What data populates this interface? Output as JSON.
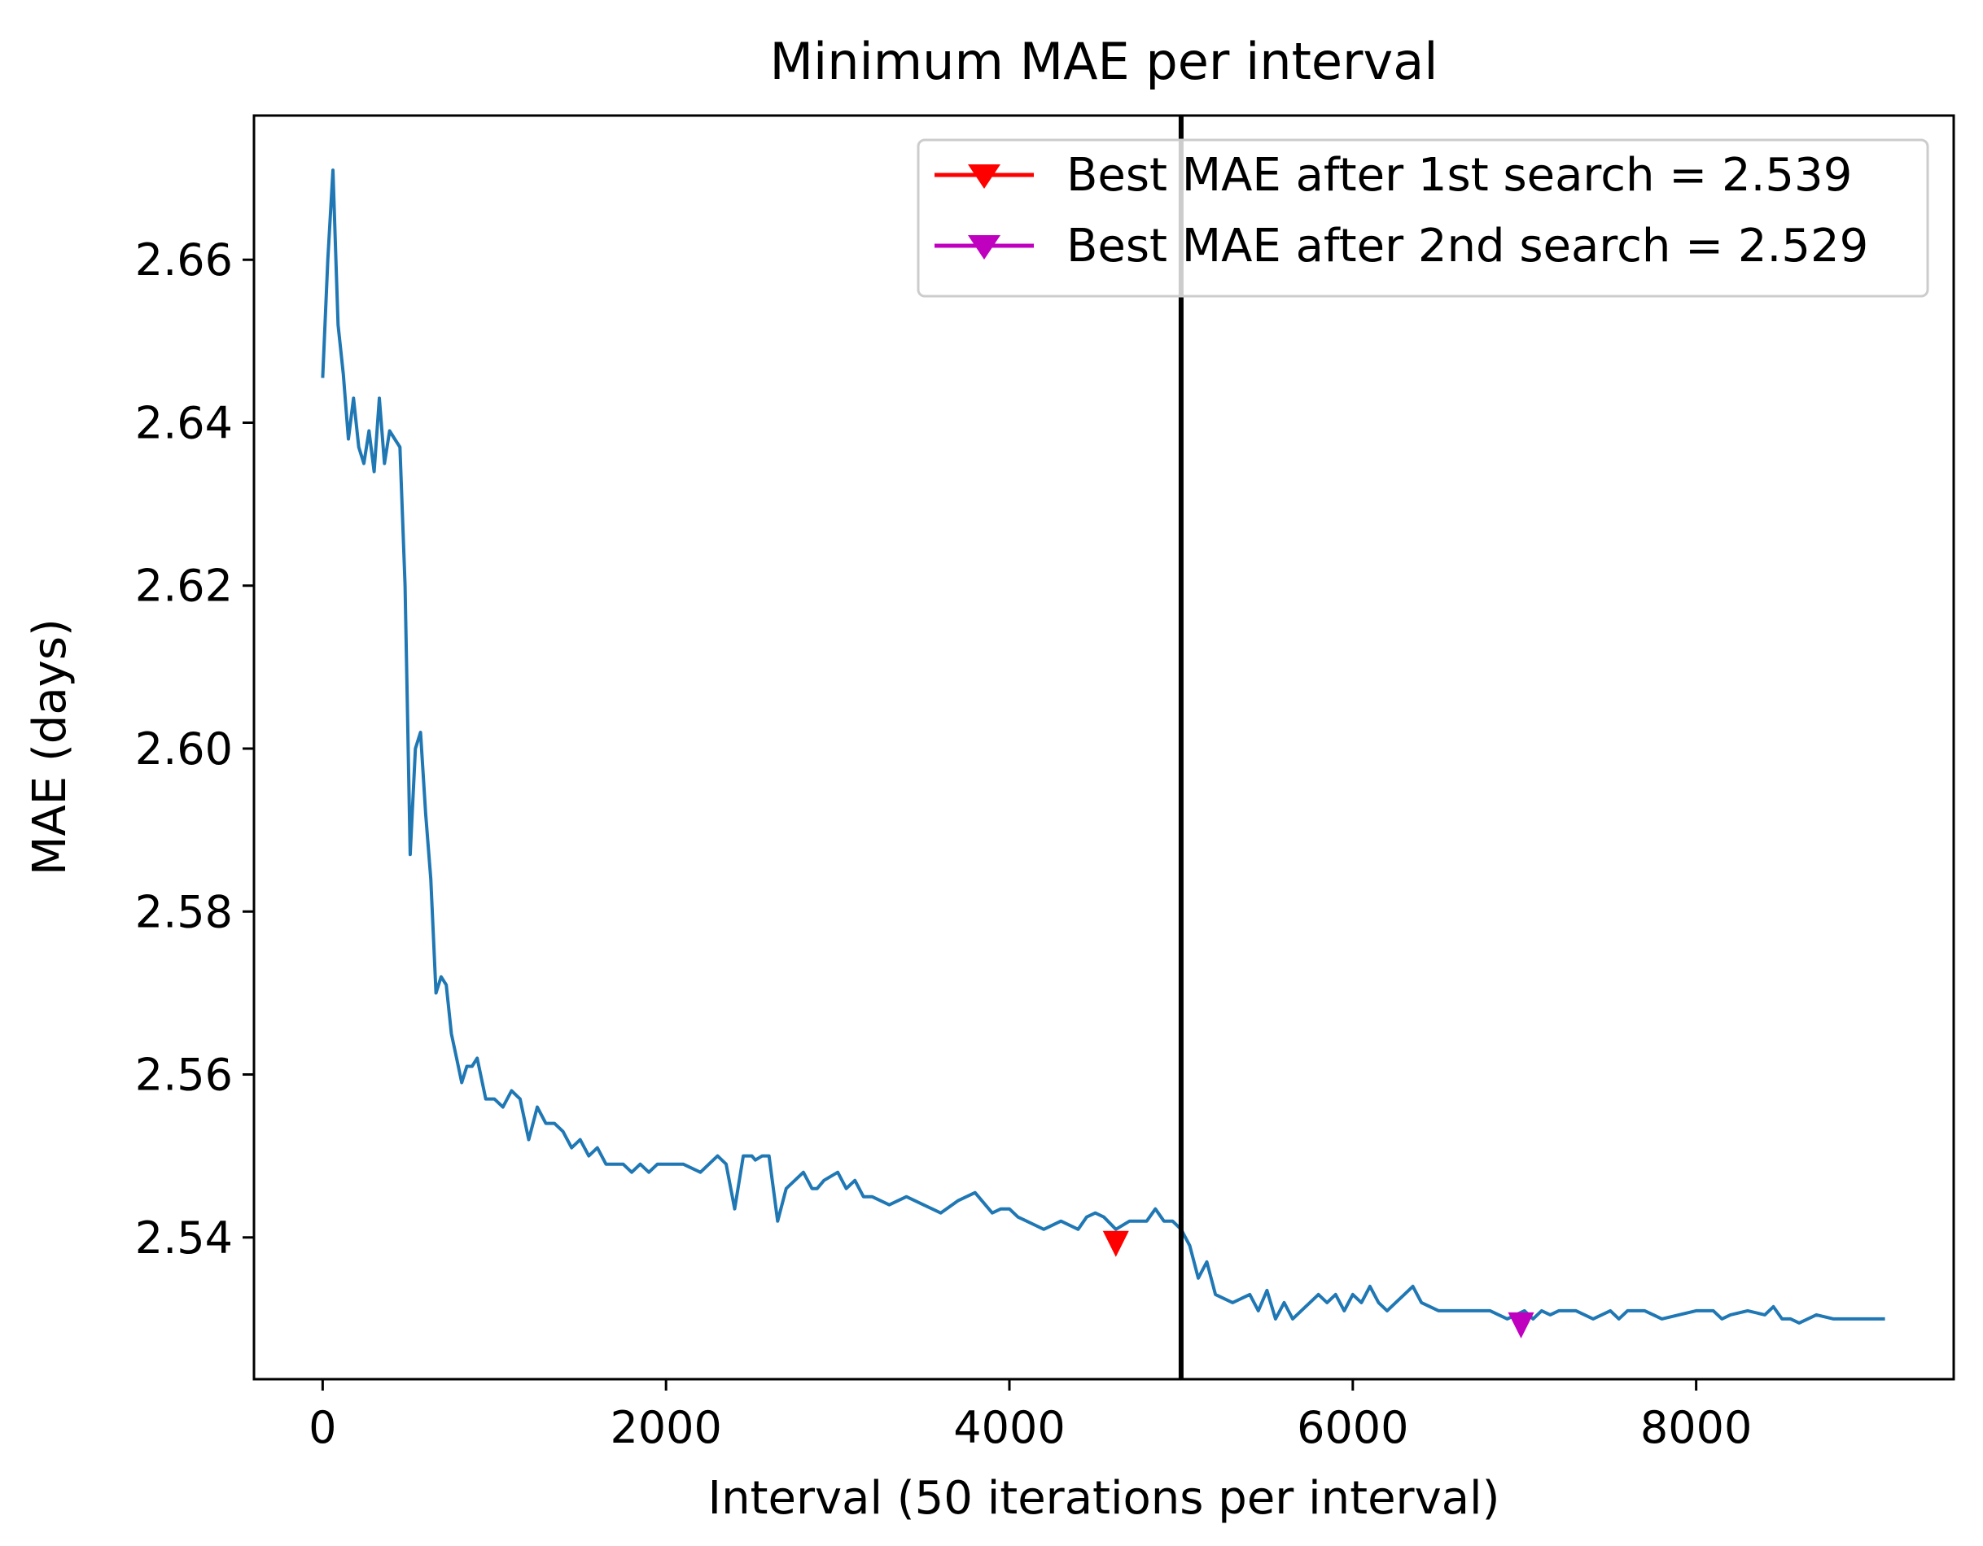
{
  "chart_data": {
    "type": "line",
    "title": "Minimum MAE per interval",
    "xlabel": "Interval (50 iterations per interval)",
    "ylabel": "MAE (days)",
    "xlim": [
      -400,
      9500
    ],
    "ylim": [
      2.5226,
      2.6777
    ],
    "x_ticks": [
      0,
      2000,
      4000,
      6000,
      8000
    ],
    "x_tick_labels": [
      "0",
      "2000",
      "4000",
      "6000",
      "8000"
    ],
    "y_ticks": [
      2.54,
      2.56,
      2.58,
      2.6,
      2.62,
      2.64,
      2.66
    ],
    "y_tick_labels": [
      "2.54",
      "2.56",
      "2.58",
      "2.60",
      "2.62",
      "2.64",
      "2.66"
    ],
    "legend_position": "top-right",
    "vertical_line": {
      "x": 5000,
      "color": "#000000"
    },
    "series": [
      {
        "name": "Minimum MAE",
        "color": "#1f77b4",
        "x": [
          0,
          30,
          60,
          90,
          120,
          150,
          180,
          210,
          240,
          270,
          300,
          330,
          360,
          390,
          420,
          450,
          480,
          510,
          540,
          570,
          600,
          630,
          660,
          690,
          720,
          750,
          780,
          810,
          840,
          870,
          900,
          950,
          1000,
          1050,
          1100,
          1150,
          1200,
          1250,
          1300,
          1350,
          1400,
          1450,
          1500,
          1550,
          1600,
          1650,
          1700,
          1750,
          1800,
          1850,
          1900,
          1950,
          2000,
          2100,
          2200,
          2300,
          2350,
          2400,
          2450,
          2500,
          2520,
          2560,
          2600,
          2650,
          2700,
          2750,
          2800,
          2850,
          2880,
          2920,
          3000,
          3050,
          3100,
          3150,
          3200,
          3300,
          3400,
          3500,
          3550,
          3600,
          3700,
          3800,
          3900,
          3950,
          4000,
          4050,
          4100,
          4200,
          4300,
          4400,
          4450,
          4500,
          4550,
          4620,
          4700,
          4800,
          4850,
          4900,
          4950,
          5000,
          5050,
          5100,
          5150,
          5200,
          5300,
          5400,
          5450,
          5500,
          5550,
          5600,
          5650,
          5700,
          5750,
          5800,
          5850,
          5900,
          5950,
          6000,
          6050,
          6100,
          6150,
          6200,
          6250,
          6300,
          6350,
          6400,
          6500,
          6600,
          6700,
          6800,
          6900,
          7000,
          7050,
          7100,
          7150,
          7200,
          7300,
          7400,
          7500,
          7550,
          7600,
          7650,
          7700,
          7800,
          7900,
          8000,
          8100,
          8150,
          8200,
          8300,
          8400,
          8450,
          8500,
          8550,
          8600,
          8700,
          8800,
          8900,
          9000,
          9100
        ],
        "values": [
          2.6455,
          2.66,
          2.671,
          2.652,
          2.646,
          2.638,
          2.643,
          2.637,
          2.635,
          2.639,
          2.634,
          2.643,
          2.635,
          2.639,
          2.638,
          2.637,
          2.62,
          2.587,
          2.6,
          2.602,
          2.592,
          2.584,
          2.57,
          2.572,
          2.571,
          2.565,
          2.562,
          2.559,
          2.561,
          2.561,
          2.562,
          2.557,
          2.557,
          2.556,
          2.558,
          2.557,
          2.552,
          2.556,
          2.554,
          2.554,
          2.553,
          2.551,
          2.552,
          2.55,
          2.551,
          2.549,
          2.549,
          2.549,
          2.548,
          2.549,
          2.548,
          2.549,
          2.549,
          2.549,
          2.548,
          2.55,
          2.549,
          2.5435,
          2.55,
          2.55,
          2.5495,
          2.55,
          2.55,
          2.542,
          2.546,
          2.547,
          2.548,
          2.546,
          2.546,
          2.547,
          2.548,
          2.546,
          2.547,
          2.545,
          2.545,
          2.544,
          2.545,
          2.544,
          2.5435,
          2.543,
          2.5445,
          2.5455,
          2.543,
          2.5435,
          2.5435,
          2.5425,
          2.542,
          2.541,
          2.542,
          2.541,
          2.5425,
          2.543,
          2.5425,
          2.541,
          2.542,
          2.542,
          2.5435,
          2.542,
          2.542,
          2.541,
          2.539,
          2.535,
          2.537,
          2.533,
          2.532,
          2.533,
          2.531,
          2.5335,
          2.53,
          2.532,
          2.53,
          2.531,
          2.532,
          2.533,
          2.532,
          2.533,
          2.531,
          2.533,
          2.532,
          2.534,
          2.532,
          2.531,
          2.532,
          2.533,
          2.534,
          2.532,
          2.531,
          2.531,
          2.531,
          2.531,
          2.53,
          2.531,
          2.53,
          2.531,
          2.5305,
          2.531,
          2.531,
          2.53,
          2.531,
          2.53,
          2.531,
          2.531,
          2.531,
          2.53,
          2.5305,
          2.531,
          2.531,
          2.53,
          2.5305,
          2.531,
          2.5305,
          2.5315,
          2.53,
          2.53,
          2.5295,
          2.5305,
          2.53,
          2.53,
          2.53,
          2.53
        ]
      }
    ],
    "markers": [
      {
        "label": "Best MAE after 1st search = 2.539",
        "x": 4620,
        "y": 2.539,
        "color": "#ff0000",
        "marker": "triangle-down"
      },
      {
        "label": "Best MAE after 2nd search = 2.529",
        "x": 6980,
        "y": 2.529,
        "color": "#bf00bf",
        "marker": "triangle-down"
      }
    ]
  }
}
